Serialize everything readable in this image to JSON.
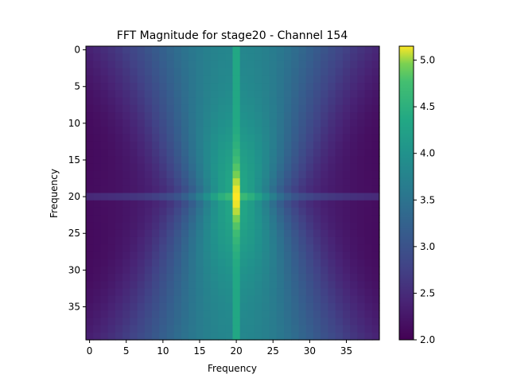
{
  "chart_data": {
    "type": "heatmap",
    "title": "FFT Magnitude for stage20 - Channel 154",
    "xlabel": "Frequency",
    "ylabel": "Frequency",
    "rows": 40,
    "cols": 40,
    "xticks": [
      "0",
      "5",
      "10",
      "15",
      "20",
      "25",
      "30",
      "35"
    ],
    "yticks": [
      "0",
      "5",
      "10",
      "15",
      "20",
      "25",
      "30",
      "35"
    ],
    "colorbar": {
      "min": 2.0,
      "max": 5.15,
      "ticks": [
        "2.0",
        "2.5",
        "3.0",
        "3.5",
        "4.0",
        "4.5",
        "5.0"
      ],
      "colormap": "viridis"
    },
    "description_values": {
      "center_column": 20,
      "center_row": 20,
      "center_column_value": 4.35,
      "peak_value": 5.15,
      "corner_value": 2.05
    }
  }
}
